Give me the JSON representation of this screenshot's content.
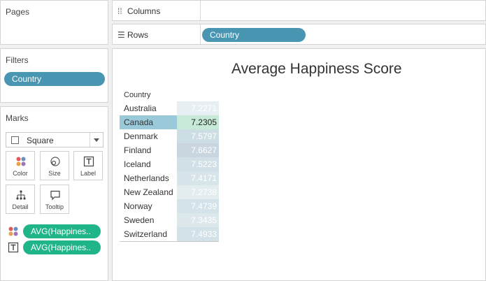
{
  "pages": {
    "title": "Pages"
  },
  "filters": {
    "title": "Filters",
    "pill": "Country"
  },
  "marks": {
    "title": "Marks",
    "mark_type": "Square",
    "buttons": [
      {
        "label": "Color",
        "icon": "color-dots-icon"
      },
      {
        "label": "Size",
        "icon": "size-circles-icon"
      },
      {
        "label": "Label",
        "icon": "label-text-icon"
      },
      {
        "label": "Detail",
        "icon": "detail-tree-icon"
      },
      {
        "label": "Tooltip",
        "icon": "tooltip-bubble-icon"
      }
    ],
    "encodings": [
      {
        "icon": "color-dots-icon",
        "pill": "AVG(Happines.."
      },
      {
        "icon": "label-text-icon",
        "pill": "AVG(Happines.."
      }
    ]
  },
  "shelves": {
    "columns_label": "Columns",
    "rows_label": "Rows",
    "rows_pill": "Country"
  },
  "view": {
    "title": "Average Happiness Score",
    "column_header": "Country",
    "selected_row": "Canada",
    "rows": [
      {
        "country": "Australia",
        "value": "7.2271",
        "bg": "#e7eff2",
        "fg": "#ffffff"
      },
      {
        "country": "Canada",
        "value": "7.2305",
        "bg": "#c7ead8",
        "fg": "#222222"
      },
      {
        "country": "Denmark",
        "value": "7.5797",
        "bg": "#cddde4",
        "fg": "#ffffff"
      },
      {
        "country": "Finland",
        "value": "7.6627",
        "bg": "#c9d6df",
        "fg": "#ffffff"
      },
      {
        "country": "Iceland",
        "value": "7.5223",
        "bg": "#d1e0e7",
        "fg": "#ffffff"
      },
      {
        "country": "Netherlands",
        "value": "7.4171",
        "bg": "#d7e4ea",
        "fg": "#ffffff"
      },
      {
        "country": "New Zealand",
        "value": "7.2738",
        "bg": "#e3ecef",
        "fg": "#ffffff"
      },
      {
        "country": "Norway",
        "value": "7.4739",
        "bg": "#d4e2e9",
        "fg": "#ffffff"
      },
      {
        "country": "Sweden",
        "value": "7.3435",
        "bg": "#dde8ec",
        "fg": "#ffffff"
      },
      {
        "country": "Switzerland",
        "value": "7.4933",
        "bg": "#d3e1e8",
        "fg": "#ffffff"
      }
    ]
  },
  "colors": {
    "pill_blue": "#4996b2",
    "pill_green": "#1fb588",
    "selected_row": "#9ac9d9"
  }
}
